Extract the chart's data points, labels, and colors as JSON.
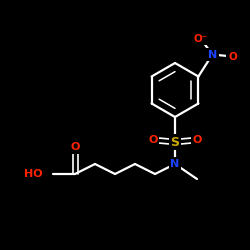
{
  "bg_color": "#000000",
  "bond_color": "#ffffff",
  "bond_width": 1.6,
  "atom_colors": {
    "O": "#ff2200",
    "N": "#1a44ff",
    "S": "#ccaa00",
    "white": "#ffffff"
  },
  "font_size": 8.0
}
